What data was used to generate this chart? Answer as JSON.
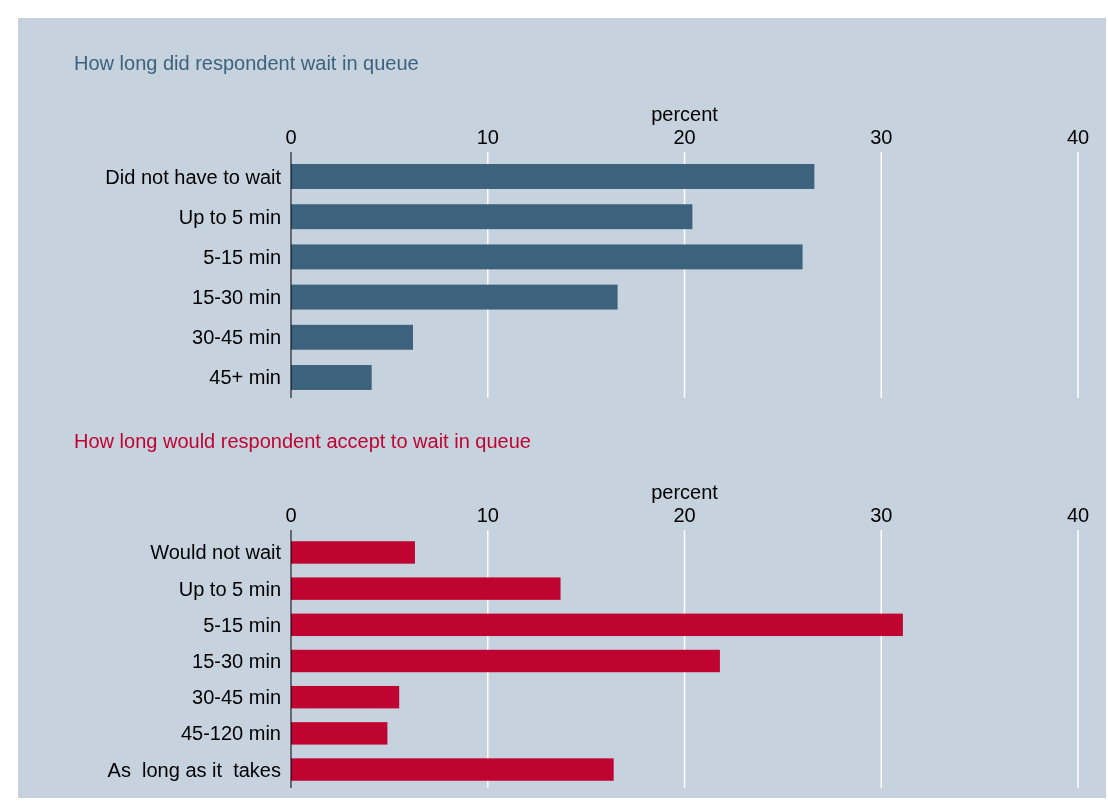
{
  "chart_data": [
    {
      "type": "bar",
      "orientation": "horizontal",
      "title": "How long did respondent wait in queue",
      "xlabel": "percent",
      "categories": [
        "Did not have to wait",
        "Up to 5 min",
        "5-15 min",
        "15-30 min",
        "30-45 min",
        "45+ min"
      ],
      "values": [
        26.6,
        20.4,
        26.0,
        16.6,
        6.2,
        4.1
      ],
      "color": "#3d627e",
      "xlim": [
        0,
        40
      ],
      "xticks": [
        0,
        10,
        20,
        30,
        40
      ],
      "grid": "x"
    },
    {
      "type": "bar",
      "orientation": "horizontal",
      "title": "How long would respondent accept to wait in queue",
      "xlabel": "percent",
      "categories": [
        "Would not wait",
        "Up to 5 min",
        "5-15 min",
        "15-30 min",
        "30-45 min",
        "45-120 min",
        "As  long as it  takes"
      ],
      "values": [
        6.3,
        13.7,
        31.1,
        21.8,
        5.5,
        4.9,
        16.4
      ],
      "color": "#c00432",
      "xlim": [
        0,
        40
      ],
      "xticks": [
        0,
        10,
        20,
        30,
        40
      ],
      "grid": "x"
    }
  ]
}
